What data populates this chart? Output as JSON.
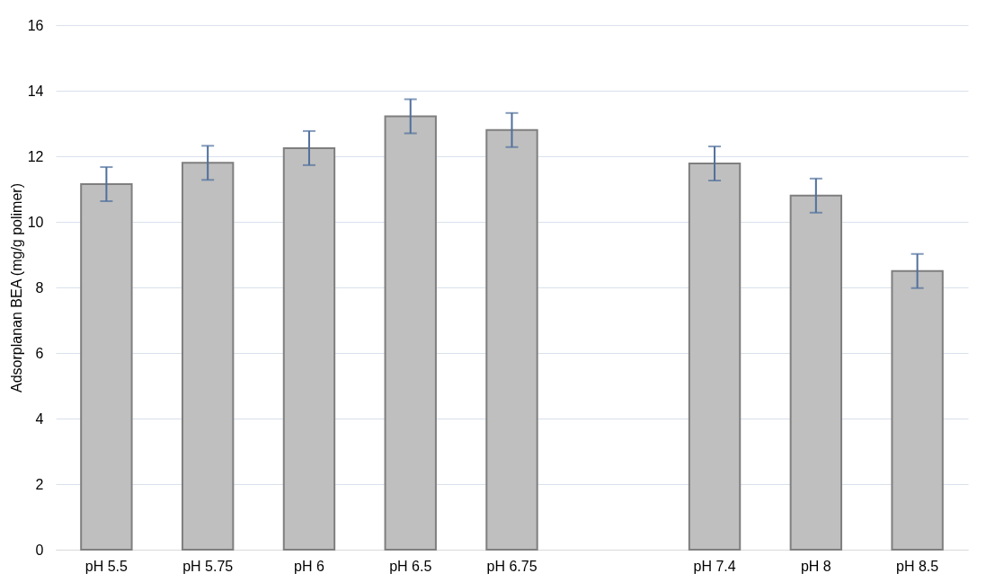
{
  "chart_data": {
    "type": "bar",
    "ylabel": "Adsorplanan BEA (mg/g polimer)",
    "categories": [
      "pH 5.5",
      "pH 5.75",
      "pH 6",
      "pH 6.5",
      "pH 6.75",
      null,
      "pH 7.4",
      "pH 8",
      "pH 8.5"
    ],
    "values": [
      11.15,
      11.8,
      12.25,
      13.22,
      12.8,
      null,
      11.78,
      10.8,
      8.5
    ],
    "errors": [
      0.52,
      0.52,
      0.52,
      0.52,
      0.52,
      null,
      0.52,
      0.52,
      0.52
    ],
    "color": "#bfbfbf",
    "ylim": [
      0,
      16
    ],
    "yticks": [
      0,
      2,
      4,
      6,
      8,
      10,
      12,
      14,
      16
    ],
    "grid": "y"
  }
}
